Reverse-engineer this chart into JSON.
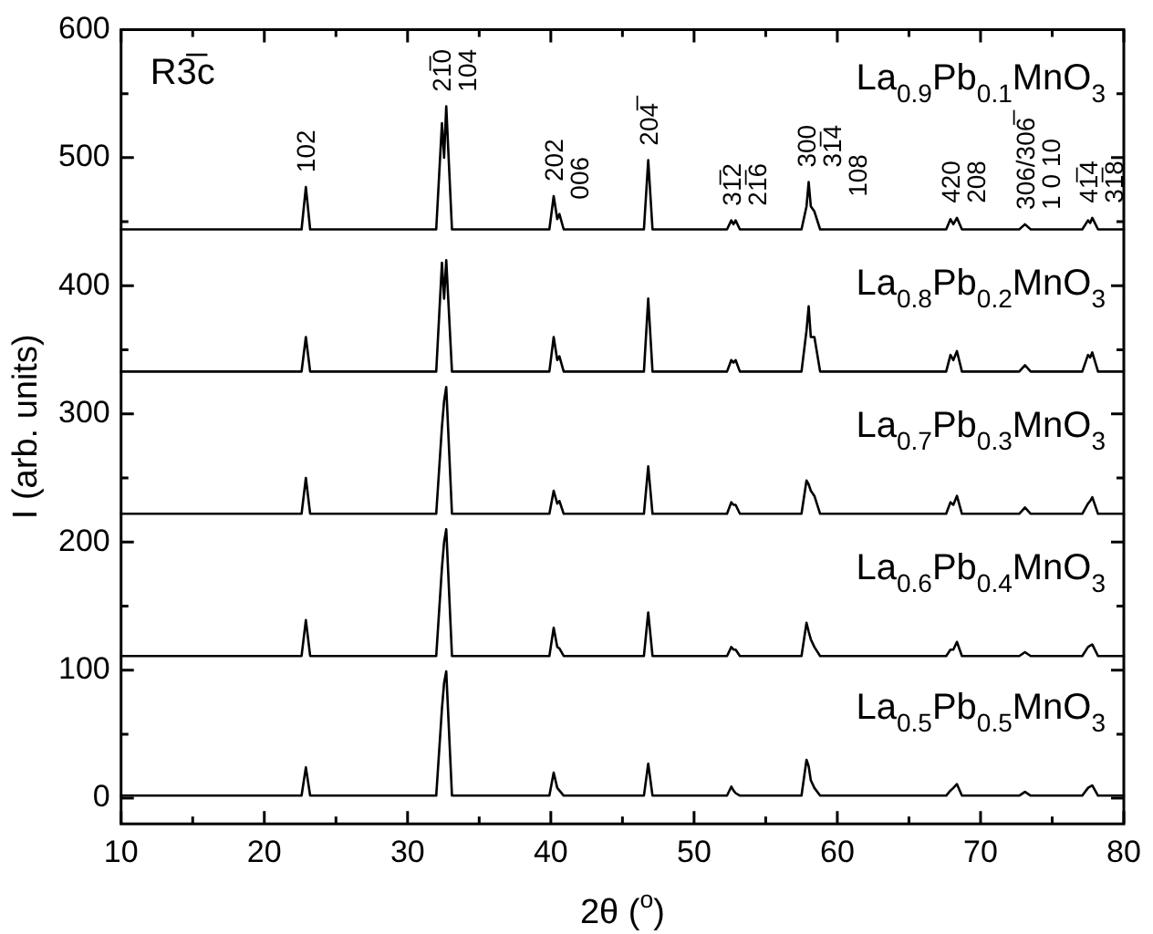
{
  "chart_data": {
    "type": "line",
    "xlabel": "2θ ($^{o}$)",
    "ylabel": "I (arb. units)",
    "xlim": [
      10,
      80
    ],
    "xticks": [
      10,
      {
        "value": 15,
        "label": null
      },
      20,
      {
        "value": 25,
        "label": null
      },
      30,
      {
        "value": 35,
        "label": null
      },
      40,
      {
        "value": 45,
        "label": null
      },
      50,
      {
        "value": 55,
        "label": null
      },
      60,
      {
        "value": 65,
        "label": null
      },
      70,
      {
        "value": 75,
        "label": null
      },
      80
    ],
    "ylim": [
      -20,
      600
    ],
    "yticks": [
      0,
      {
        "value": 50,
        "label": null
      },
      100,
      {
        "value": 150,
        "label": null
      },
      200,
      {
        "value": 250,
        "label": null
      },
      300,
      {
        "value": 350,
        "label": null
      },
      400,
      {
        "value": 450,
        "label": null
      },
      500,
      {
        "value": 550,
        "label": null
      },
      600
    ],
    "x": [
      10,
      22.6,
      22.9,
      23.2,
      32.0,
      32.4,
      32.55,
      32.7,
      33.1,
      39.9,
      40.2,
      40.45,
      40.6,
      40.9,
      46.5,
      46.8,
      47.1,
      52.3,
      52.6,
      52.75,
      52.9,
      53.2,
      57.5,
      57.85,
      58.0,
      58.15,
      58.4,
      58.8,
      67.6,
      67.9,
      68.1,
      68.35,
      68.7,
      72.7,
      73.1,
      73.5,
      77.1,
      77.5,
      77.65,
      77.8,
      78.2,
      80
    ],
    "series": [
      {
        "name": "La$_{0.9}$Pb$_{0.1}$MnO$_{3}$",
        "color": "#000000",
        "values": [
          444,
          444,
          477,
          444,
          444,
          527,
          500,
          540,
          444,
          444,
          470,
          452,
          456,
          444,
          444,
          498,
          444,
          444,
          451,
          448,
          451,
          444,
          444,
          462,
          481,
          462,
          458,
          444,
          444,
          452,
          448,
          453,
          444,
          444,
          448,
          444,
          444,
          451,
          449,
          453,
          444,
          444
        ]
      },
      {
        "name": "La$_{0.8}$Pb$_{0.2}$MnO$_{3}$",
        "color": "#000000",
        "values": [
          333,
          333,
          360,
          333,
          333,
          418,
          390,
          420,
          333,
          333,
          360,
          342,
          345,
          333,
          333,
          390,
          333,
          333,
          342,
          340,
          342,
          333,
          333,
          365,
          384,
          360,
          360,
          333,
          333,
          346,
          342,
          349,
          333,
          333,
          338,
          333,
          333,
          346,
          344,
          348,
          333,
          333
        ]
      },
      {
        "name": "La$_{0.7}$Pb$_{0.3}$MnO$_{3}$",
        "color": "#000000",
        "values": [
          222,
          222,
          250,
          222,
          222,
          290,
          310,
          321,
          222,
          222,
          240,
          230,
          232,
          222,
          222,
          259,
          222,
          222,
          231,
          229,
          229,
          222,
          222,
          248,
          245,
          240,
          236,
          222,
          222,
          231,
          229,
          236,
          222,
          222,
          227,
          222,
          222,
          230,
          232,
          235,
          222,
          222
        ]
      },
      {
        "name": "La$_{0.6}$Pb$_{0.4}$MnO$_{3}$",
        "color": "#000000",
        "values": [
          111,
          111,
          139,
          111,
          111,
          180,
          200,
          210,
          111,
          111,
          133,
          118,
          117,
          111,
          111,
          145,
          111,
          111,
          118,
          116,
          116,
          111,
          111,
          137,
          130,
          124,
          118,
          111,
          111,
          116,
          116,
          122,
          111,
          111,
          114,
          111,
          111,
          118,
          119,
          120,
          111,
          111
        ]
      },
      {
        "name": "La$_{0.5}$Pb$_{0.5}$MnO$_{3}$",
        "color": "#000000",
        "values": [
          2,
          2,
          24,
          2,
          2,
          70,
          90,
          99,
          2,
          2,
          20,
          8,
          6,
          2,
          2,
          27,
          2,
          2,
          9,
          6,
          4,
          2,
          2,
          30,
          25,
          14,
          8,
          2,
          2,
          6,
          8,
          11,
          2,
          2,
          5,
          2,
          2,
          8,
          9,
          10,
          2,
          2
        ]
      }
    ],
    "legend": "right",
    "annotations": [
      "R3̅c",
      {
        "text": "102",
        "x": 22.9,
        "y": 477
      },
      {
        "text": "21̅0",
        "x": 32.4,
        "y": 527
      },
      {
        "text": "104",
        "x": 32.7,
        "y": 540
      },
      {
        "text": "202",
        "x": 40.2,
        "y": 470
      },
      {
        "text": "006",
        "x": 40.6,
        "y": 456
      },
      {
        "text": "204̅",
        "x": 46.8,
        "y": 498
      },
      {
        "text": "31̅2",
        "x": 52.6,
        "y": 451
      },
      {
        "text": "21̅6",
        "x": 52.9,
        "y": 451
      },
      {
        "text": "300",
        "x": 57.85,
        "y": 462
      },
      {
        "text": "31̅4",
        "x": 58.0,
        "y": 481
      },
      {
        "text": "108",
        "x": 58.4,
        "y": 458
      },
      {
        "text": "420",
        "x": 67.9,
        "y": 452
      },
      {
        "text": "208",
        "x": 68.35,
        "y": 453
      },
      {
        "text": "306/306̅",
        "x": 73.1,
        "y": 448
      },
      {
        "text": "1 0 10",
        "x": 73.1,
        "y": 448
      },
      {
        "text": "41̅4",
        "x": 77.5,
        "y": 451
      },
      {
        "text": "31̅8",
        "x": 77.8,
        "y": 453
      }
    ]
  }
}
